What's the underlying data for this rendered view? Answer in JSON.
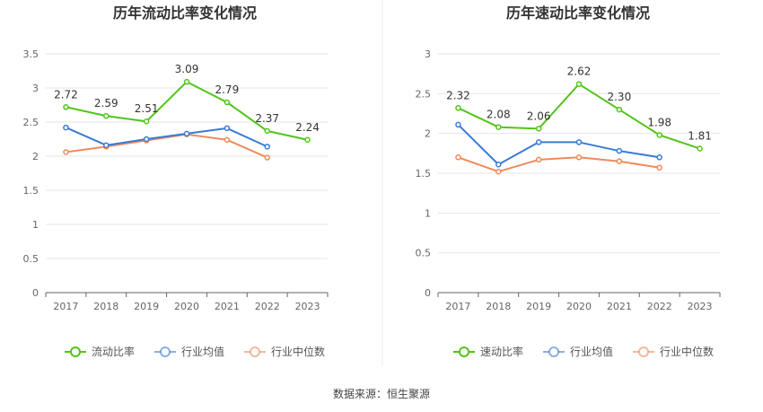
{
  "source": "数据来源：恒生聚源",
  "chart_data": [
    {
      "type": "line",
      "title": "历年流动比率变化情况",
      "categories": [
        "2017",
        "2018",
        "2019",
        "2020",
        "2021",
        "2022",
        "2023"
      ],
      "ylim": [
        0,
        3.5
      ],
      "yticks": [
        "0",
        "0.5",
        "1",
        "1.5",
        "2",
        "2.5",
        "3",
        "3.5"
      ],
      "grid": true,
      "legend": "bottom-center",
      "series": [
        {
          "name": "流动比率",
          "color": "#52c41a",
          "values": [
            2.72,
            2.59,
            2.51,
            3.09,
            2.79,
            2.37,
            2.24
          ],
          "labels": [
            "2.72",
            "2.59",
            "2.51",
            "3.09",
            "2.79",
            "2.37",
            "2.24"
          ]
        },
        {
          "name": "行业均值",
          "color": "#3a7bd5",
          "values": [
            2.42,
            2.16,
            2.25,
            2.33,
            2.41,
            2.14,
            null
          ]
        },
        {
          "name": "行业中位数",
          "color": "#ef8a5b",
          "values": [
            2.06,
            2.14,
            2.23,
            2.32,
            2.24,
            1.98,
            null
          ]
        }
      ]
    },
    {
      "type": "line",
      "title": "历年速动比率变化情况",
      "categories": [
        "2017",
        "2018",
        "2019",
        "2020",
        "2021",
        "2022",
        "2023"
      ],
      "ylim": [
        0,
        3
      ],
      "yticks": [
        "0",
        "0.5",
        "1",
        "1.5",
        "2",
        "2.5",
        "3"
      ],
      "grid": true,
      "legend": "bottom-center",
      "series": [
        {
          "name": "速动比率",
          "color": "#52c41a",
          "values": [
            2.32,
            2.08,
            2.06,
            2.62,
            2.3,
            1.98,
            1.81
          ],
          "labels": [
            "2.32",
            "2.08",
            "2.06",
            "2.62",
            "2.30",
            "1.98",
            "1.81"
          ]
        },
        {
          "name": "行业均值",
          "color": "#3a7bd5",
          "values": [
            2.11,
            1.61,
            1.89,
            1.89,
            1.78,
            1.7,
            null
          ]
        },
        {
          "name": "行业中位数",
          "color": "#ef8a5b",
          "values": [
            1.7,
            1.52,
            1.67,
            1.7,
            1.65,
            1.57,
            null
          ]
        }
      ]
    }
  ]
}
